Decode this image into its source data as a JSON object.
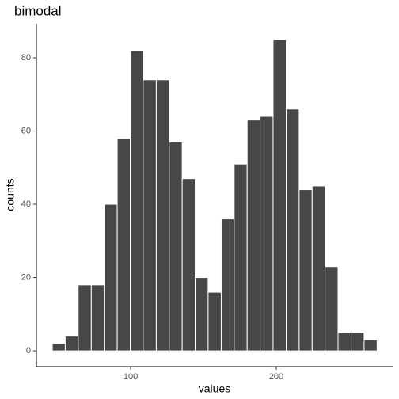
{
  "chart_data": {
    "type": "histogram",
    "title": "bimodal",
    "x_label": "values",
    "y_label": "counts",
    "bins": [
      46.2,
      55.1,
      64.0,
      73.0,
      81.9,
      90.8,
      99.7,
      108.6,
      117.6,
      126.5,
      135.4,
      144.3,
      153.2,
      162.2,
      171.1,
      180.0,
      188.9,
      197.8,
      206.8,
      215.7,
      224.6,
      233.5,
      242.4,
      251.4,
      260.3,
      269.2
    ],
    "values": [
      2,
      4,
      18,
      18,
      40,
      58,
      82,
      74,
      74,
      57,
      47,
      20,
      16,
      36,
      51,
      63,
      64,
      85,
      66,
      44,
      45,
      23,
      5,
      5,
      3
    ],
    "color": "#474747",
    "xlim": [
      35.3,
      279.9
    ],
    "xticks": [
      100,
      200
    ],
    "ylim": [
      -4.3,
      89.3
    ],
    "yticks": [
      0,
      20,
      40,
      60,
      80
    ],
    "grid": false
  }
}
